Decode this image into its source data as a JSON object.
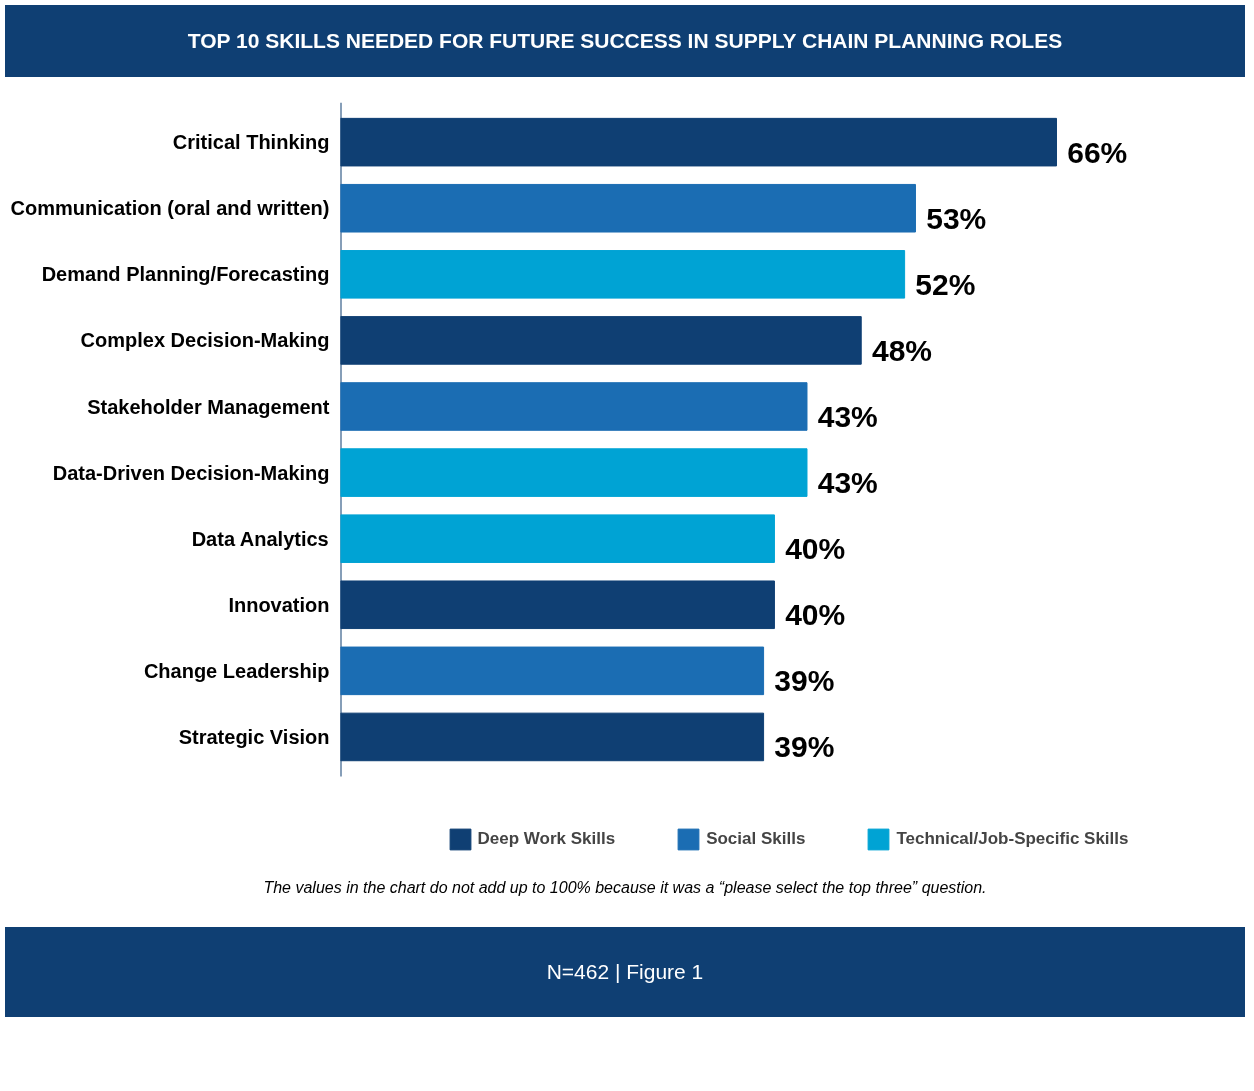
{
  "chart_data": {
    "type": "bar",
    "orientation": "horizontal",
    "title": "TOP 10 SKILLS NEEDED FOR FUTURE SUCCESS IN SUPPLY CHAIN PLANNING ROLES",
    "categories": [
      "Critical Thinking",
      "Communication (oral and written)",
      "Demand Planning/Forecasting",
      "Complex Decision-Making",
      "Stakeholder Management",
      "Data-Driven Decision-Making",
      "Data Analytics",
      "Innovation",
      "Change Leadership",
      "Strategic Vision"
    ],
    "series": [
      {
        "name": "Deep Work Skills",
        "color": "#0f3f73",
        "values": [
          66,
          null,
          null,
          48,
          null,
          null,
          null,
          40,
          null,
          39
        ],
        "value_labels": [
          "66%",
          null,
          null,
          "48%",
          null,
          null,
          null,
          "40%",
          null,
          "39%"
        ]
      },
      {
        "name": "Social Skills",
        "color": "#1b6db3",
        "values": [
          null,
          53,
          null,
          null,
          43,
          null,
          null,
          null,
          39,
          null
        ],
        "value_labels": [
          null,
          "53%",
          null,
          null,
          "43%",
          null,
          null,
          null,
          "39%",
          null
        ]
      },
      {
        "name": "Technical/Job-Specific Skills",
        "color": "#00a3d4",
        "values": [
          null,
          null,
          52,
          null,
          null,
          43,
          40,
          null,
          null,
          null
        ],
        "value_labels": [
          null,
          null,
          "52%",
          null,
          null,
          "43%",
          "40%",
          null,
          null,
          null
        ]
      }
    ],
    "legend": "bottom",
    "grid": false,
    "annotations": [
      "The values in the chart do not add up to 100% because it was a “please select the top three” question.",
      "N=462 | Figure 1"
    ]
  }
}
